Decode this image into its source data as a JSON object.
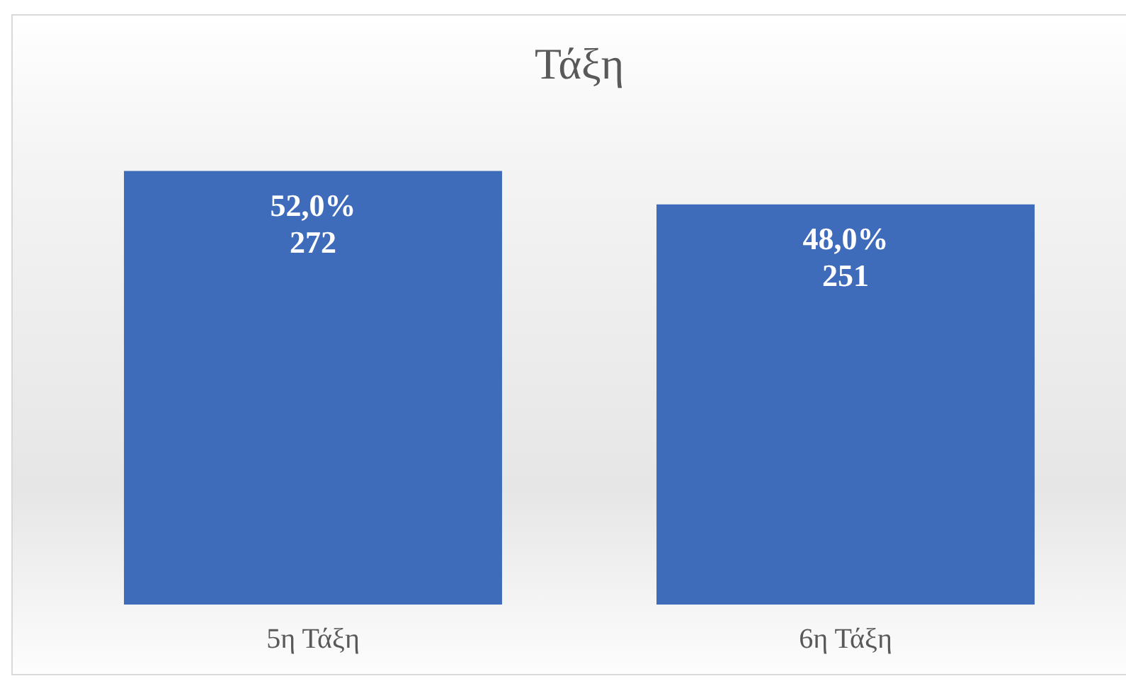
{
  "chart_data": {
    "type": "bar",
    "title": "Τάξη",
    "categories": [
      "5η Τάξη",
      "6η Τάξη"
    ],
    "values": [
      272,
      251
    ],
    "value_labels": [
      "52,0%\n272",
      "48,0%\n251"
    ],
    "color": "#3f6bbb",
    "tick_labels": "x"
  }
}
